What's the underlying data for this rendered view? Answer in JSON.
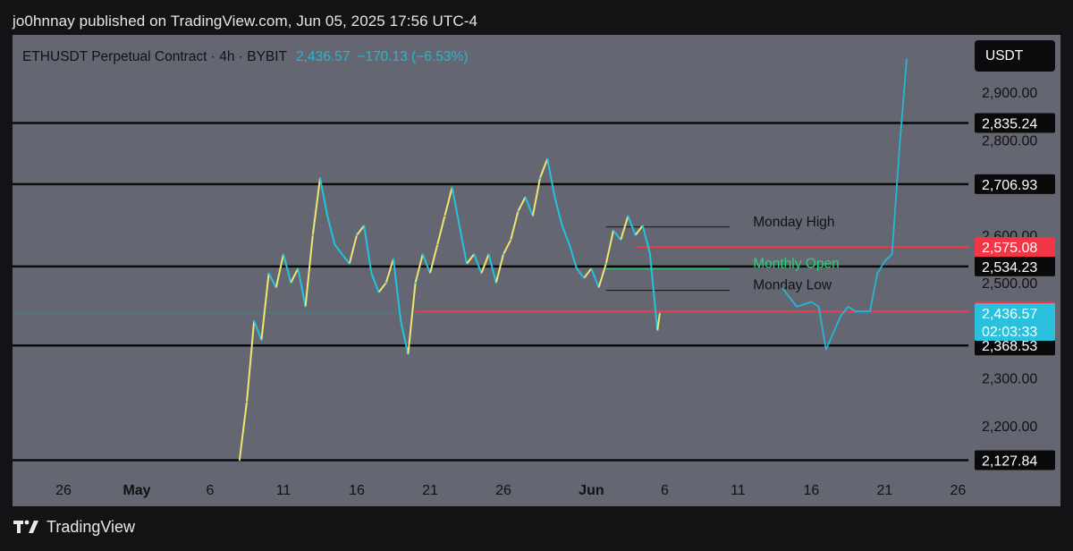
{
  "header": {
    "published": "jo0hnnay published on TradingView.com, Jun 05, 2025 17:56 UTC-4"
  },
  "legend": {
    "symbol": "ETHUSDT Perpetual Contract · 4h · BYBIT",
    "last": "2,436.57",
    "change": "−170.13 (−6.53%)"
  },
  "currency": "USDT",
  "footer": {
    "brand": "TradingView"
  },
  "colors": {
    "background": "#646771",
    "candle_up": "#f1e672",
    "candle_down": "#22c3dc",
    "key_level": "#0a0a0a",
    "red_level": "#f23645",
    "projection": "#26b6d6",
    "monthly_open": "#2ecf7e"
  },
  "chart_data": {
    "type": "line",
    "interval": "4h",
    "y_axis": {
      "ticks": [
        {
          "value": 2900,
          "label": "2,900.00"
        },
        {
          "value": 2800,
          "label": "2,800.00"
        },
        {
          "value": 2600,
          "label": "2,600.00"
        },
        {
          "value": 2500,
          "label": "2,500.00"
        },
        {
          "value": 2300,
          "label": "2,300.00"
        },
        {
          "value": 2200,
          "label": "2,200.00"
        }
      ]
    },
    "x_axis": {
      "ticks": [
        {
          "date": "2025-04-26",
          "label": "26",
          "bold": false
        },
        {
          "date": "2025-05-01",
          "label": "May",
          "bold": true
        },
        {
          "date": "2025-05-06",
          "label": "6",
          "bold": false
        },
        {
          "date": "2025-05-11",
          "label": "11",
          "bold": false
        },
        {
          "date": "2025-05-16",
          "label": "16",
          "bold": false
        },
        {
          "date": "2025-05-21",
          "label": "21",
          "bold": false
        },
        {
          "date": "2025-05-26",
          "label": "26",
          "bold": false
        },
        {
          "date": "2025-06-01",
          "label": "Jun",
          "bold": true
        },
        {
          "date": "2025-06-06",
          "label": "6",
          "bold": false
        },
        {
          "date": "2025-06-11",
          "label": "11",
          "bold": false
        },
        {
          "date": "2025-06-16",
          "label": "16",
          "bold": false
        },
        {
          "date": "2025-06-21",
          "label": "21",
          "bold": false
        },
        {
          "date": "2025-06-26",
          "label": "26",
          "bold": false
        }
      ]
    },
    "horizontal_levels": [
      {
        "value": 2835.24,
        "label": "2,835.24",
        "style": "key"
      },
      {
        "value": 2706.93,
        "label": "2,706.93",
        "style": "key"
      },
      {
        "value": 2534.23,
        "label": "2,534.23",
        "style": "key"
      },
      {
        "value": 2368.53,
        "label": "2,368.53",
        "style": "key"
      },
      {
        "value": 2127.84,
        "label": "2,127.84",
        "style": "key"
      }
    ],
    "red_levels": [
      {
        "value": 2575.08,
        "label": "2,575.08",
        "from": "2025-06-04"
      },
      {
        "value": 2440.29,
        "label": "2,440.29",
        "from": "2025-05-20"
      }
    ],
    "last_price": {
      "value": 2436.57,
      "label": "2,436.57",
      "countdown": "02:03:33"
    },
    "annotations": [
      {
        "text": "Monday High",
        "value": 2617,
        "from": "2025-06-02",
        "to": "2025-06-08",
        "color": "#121212"
      },
      {
        "text": "Monthly Open",
        "value": 2529,
        "from": "2025-06-02",
        "to": "2025-06-08",
        "color": "#2ecf7e"
      },
      {
        "text": "Monday Low",
        "value": 2484,
        "from": "2025-06-02",
        "to": "2025-06-08",
        "color": "#121212"
      }
    ],
    "price_series": [
      {
        "date": "2025-05-08",
        "value": 2127
      },
      {
        "date": "2025-05-08T12:00",
        "value": 2250
      },
      {
        "date": "2025-05-09",
        "value": 2420
      },
      {
        "date": "2025-05-09T12:00",
        "value": 2380
      },
      {
        "date": "2025-05-10",
        "value": 2520
      },
      {
        "date": "2025-05-10T12:00",
        "value": 2490
      },
      {
        "date": "2025-05-11",
        "value": 2560
      },
      {
        "date": "2025-05-11T12:00",
        "value": 2500
      },
      {
        "date": "2025-05-12",
        "value": 2530
      },
      {
        "date": "2025-05-12T12:00",
        "value": 2450
      },
      {
        "date": "2025-05-13",
        "value": 2600
      },
      {
        "date": "2025-05-13T12:00",
        "value": 2720
      },
      {
        "date": "2025-05-14",
        "value": 2640
      },
      {
        "date": "2025-05-14T12:00",
        "value": 2580
      },
      {
        "date": "2025-05-15",
        "value": 2560
      },
      {
        "date": "2025-05-15T12:00",
        "value": 2540
      },
      {
        "date": "2025-05-16",
        "value": 2600
      },
      {
        "date": "2025-05-16T12:00",
        "value": 2620
      },
      {
        "date": "2025-05-17",
        "value": 2520
      },
      {
        "date": "2025-05-17T12:00",
        "value": 2480
      },
      {
        "date": "2025-05-18",
        "value": 2500
      },
      {
        "date": "2025-05-18T12:00",
        "value": 2550
      },
      {
        "date": "2025-05-19",
        "value": 2420
      },
      {
        "date": "2025-05-19T12:00",
        "value": 2350
      },
      {
        "date": "2025-05-20",
        "value": 2500
      },
      {
        "date": "2025-05-20T12:00",
        "value": 2560
      },
      {
        "date": "2025-05-21",
        "value": 2520
      },
      {
        "date": "2025-05-21T12:00",
        "value": 2580
      },
      {
        "date": "2025-05-22",
        "value": 2640
      },
      {
        "date": "2025-05-22T12:00",
        "value": 2700
      },
      {
        "date": "2025-05-23",
        "value": 2620
      },
      {
        "date": "2025-05-23T12:00",
        "value": 2540
      },
      {
        "date": "2025-05-24",
        "value": 2560
      },
      {
        "date": "2025-05-24T12:00",
        "value": 2520
      },
      {
        "date": "2025-05-25",
        "value": 2560
      },
      {
        "date": "2025-05-25T12:00",
        "value": 2500
      },
      {
        "date": "2025-05-26",
        "value": 2560
      },
      {
        "date": "2025-05-26T12:00",
        "value": 2590
      },
      {
        "date": "2025-05-27",
        "value": 2650
      },
      {
        "date": "2025-05-27T12:00",
        "value": 2680
      },
      {
        "date": "2025-05-28",
        "value": 2640
      },
      {
        "date": "2025-05-28T12:00",
        "value": 2720
      },
      {
        "date": "2025-05-29",
        "value": 2760
      },
      {
        "date": "2025-05-29T12:00",
        "value": 2680
      },
      {
        "date": "2025-05-30",
        "value": 2620
      },
      {
        "date": "2025-05-30T12:00",
        "value": 2580
      },
      {
        "date": "2025-05-31",
        "value": 2530
      },
      {
        "date": "2025-05-31T12:00",
        "value": 2510
      },
      {
        "date": "2025-06-01",
        "value": 2530
      },
      {
        "date": "2025-06-01T12:00",
        "value": 2490
      },
      {
        "date": "2025-06-02",
        "value": 2540
      },
      {
        "date": "2025-06-02T12:00",
        "value": 2610
      },
      {
        "date": "2025-06-03",
        "value": 2590
      },
      {
        "date": "2025-06-03T12:00",
        "value": 2640
      },
      {
        "date": "2025-06-04",
        "value": 2600
      },
      {
        "date": "2025-06-04T12:00",
        "value": 2620
      },
      {
        "date": "2025-06-05",
        "value": 2560
      },
      {
        "date": "2025-06-05T12:00",
        "value": 2400
      },
      {
        "date": "2025-06-05T16:00",
        "value": 2436.57
      }
    ],
    "projection_path": [
      {
        "date": "2025-06-14",
        "value": 2490
      },
      {
        "date": "2025-06-15",
        "value": 2450
      },
      {
        "date": "2025-06-16",
        "value": 2460
      },
      {
        "date": "2025-06-16T12:00",
        "value": 2450
      },
      {
        "date": "2025-06-17",
        "value": 2360
      },
      {
        "date": "2025-06-18",
        "value": 2430
      },
      {
        "date": "2025-06-18T12:00",
        "value": 2450
      },
      {
        "date": "2025-06-19",
        "value": 2440
      },
      {
        "date": "2025-06-20",
        "value": 2440
      },
      {
        "date": "2025-06-20T12:00",
        "value": 2520
      },
      {
        "date": "2025-06-21",
        "value": 2545
      },
      {
        "date": "2025-06-21T12:00",
        "value": 2560
      },
      {
        "date": "2025-06-22",
        "value": 2780
      },
      {
        "date": "2025-06-22T12:00",
        "value": 2970
      }
    ],
    "grid": false
  }
}
